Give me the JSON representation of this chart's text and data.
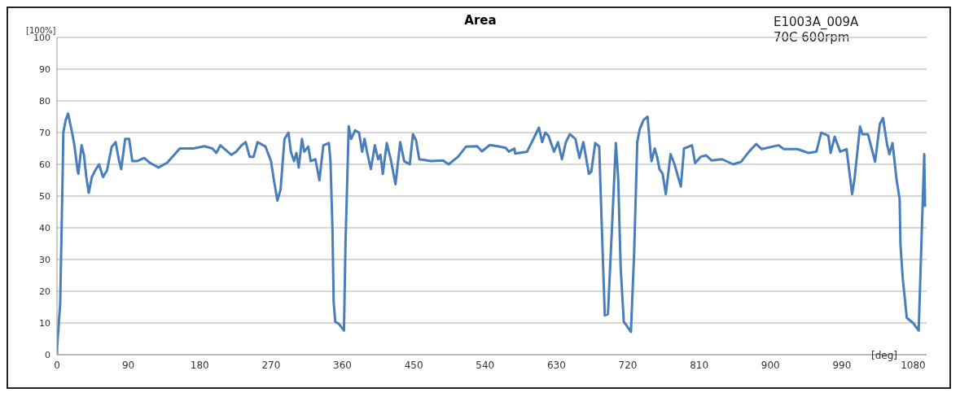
{
  "chart_data": {
    "type": "line",
    "title": "Area",
    "xlabel": "[deg]",
    "ylabel": "[100%]",
    "annotations": [
      "E1003A_009A",
      "70C 600rpm"
    ],
    "xlim": [
      0,
      1097
    ],
    "xticks": [
      0,
      90,
      180,
      270,
      360,
      450,
      540,
      630,
      720,
      810,
      900,
      990,
      1080
    ],
    "ylim": [
      0,
      100
    ],
    "yticks": [
      0,
      10,
      20,
      30,
      40,
      50,
      60,
      70,
      80,
      90,
      100
    ],
    "grid": "y",
    "marker": "none",
    "line_style": "solid",
    "series": [
      {
        "color": "#4a7ebb",
        "x": [
          0,
          0.3,
          4,
          7,
          8,
          11,
          14,
          19,
          22,
          26,
          27,
          31,
          34,
          37,
          40,
          44,
          48,
          53,
          58,
          63,
          69,
          74,
          78,
          81,
          86,
          91,
          95,
          101,
          110,
          117,
          128,
          139,
          155,
          172,
          186,
          196,
          201,
          206,
          220,
          226,
          233,
          238,
          243,
          248,
          253,
          263,
          270,
          273,
          278,
          282,
          287,
          292,
          295,
          299,
          302,
          305,
          309,
          312,
          317,
          320,
          326,
          331,
          336,
          343,
          345,
          347.5,
          349,
          351,
          356,
          362,
          364,
          368,
          371,
          376,
          381,
          385,
          388,
          391,
          396,
          401,
          405,
          408,
          411,
          416,
          421,
          427,
          433,
          438,
          445,
          449,
          453,
          457,
          472,
          487,
          494,
          506,
          516,
          530,
          536,
          546,
          556,
          566,
          570,
          577,
          578,
          593,
          600,
          608,
          612,
          616,
          620,
          627,
          632,
          637,
          642,
          647,
          654,
          659,
          664,
          671,
          674,
          679,
          684,
          686,
          690,
          691,
          695,
          700,
          705,
          708,
          711,
          715,
          724,
          728,
          732,
          735,
          740,
          745,
          749,
          750,
          754,
          757,
          760,
          764,
          768,
          774,
          779,
          787,
          791,
          801,
          805,
          812,
          819,
          826,
          839,
          853,
          863,
          873,
          882,
          889,
          910,
          917,
          934,
          948,
          958,
          964,
          973,
          976,
          981,
          988,
          996,
          1003,
          1006,
          1013,
          1016,
          1023,
          1032,
          1038,
          1042,
          1047,
          1050,
          1054,
          1057,
          1059,
          1063,
          1064,
          1067,
          1072,
          1080,
          1087,
          1090,
          1094,
          1095
        ],
        "values": [
          0,
          3,
          16,
          55,
          70,
          74,
          76,
          70,
          66,
          58,
          57,
          66,
          63,
          56,
          51,
          56,
          58,
          60,
          56,
          58,
          65.5,
          67,
          61.5,
          58.5,
          68,
          68,
          61,
          61,
          62,
          60.5,
          59,
          60.5,
          65,
          65,
          65.7,
          65,
          63.6,
          66,
          63,
          64,
          66,
          67,
          62.4,
          62.4,
          67,
          65.6,
          61,
          56,
          48.6,
          52,
          68,
          70,
          64,
          61,
          63.6,
          59,
          68,
          64,
          65.6,
          61,
          61.6,
          55,
          66,
          66.7,
          61,
          39.6,
          16.7,
          10.4,
          9.6,
          7.6,
          35.6,
          72,
          68,
          70.7,
          70,
          64,
          68,
          64,
          58.5,
          66,
          61.6,
          63,
          57,
          66.7,
          61.6,
          53.7,
          67,
          61,
          60,
          69.5,
          67.5,
          61.6,
          61,
          61.2,
          60,
          62.4,
          65.6,
          65.7,
          64.1,
          66.1,
          65.7,
          65.2,
          64,
          65,
          63.4,
          64,
          67.5,
          71.6,
          67,
          70,
          69,
          64,
          67,
          61.6,
          67,
          69.5,
          68,
          62,
          67,
          57,
          57.7,
          66.7,
          65.6,
          49.8,
          19.9,
          12.4,
          12.8,
          39.6,
          66.7,
          55.3,
          27.7,
          10.4,
          7.2,
          31.7,
          67,
          71,
          74,
          75,
          63,
          61,
          65,
          62.4,
          58.5,
          57,
          50.6,
          63.2,
          60,
          53,
          65,
          66,
          60.4,
          62.4,
          62.8,
          61.2,
          61.6,
          60,
          60.8,
          64,
          66.4,
          64.8,
          66,
          64.8,
          64.8,
          63.6,
          64,
          70,
          69,
          63.6,
          68.7,
          64,
          64.8,
          50.6,
          55.3,
          71.9,
          69.5,
          69.5,
          60.8,
          72.7,
          74.6,
          66.4,
          63.2,
          66.7,
          60,
          55.3,
          49,
          34.8,
          23.8,
          11.6,
          10,
          7.6,
          31.7,
          63.2,
          46.6
        ]
      }
    ]
  }
}
